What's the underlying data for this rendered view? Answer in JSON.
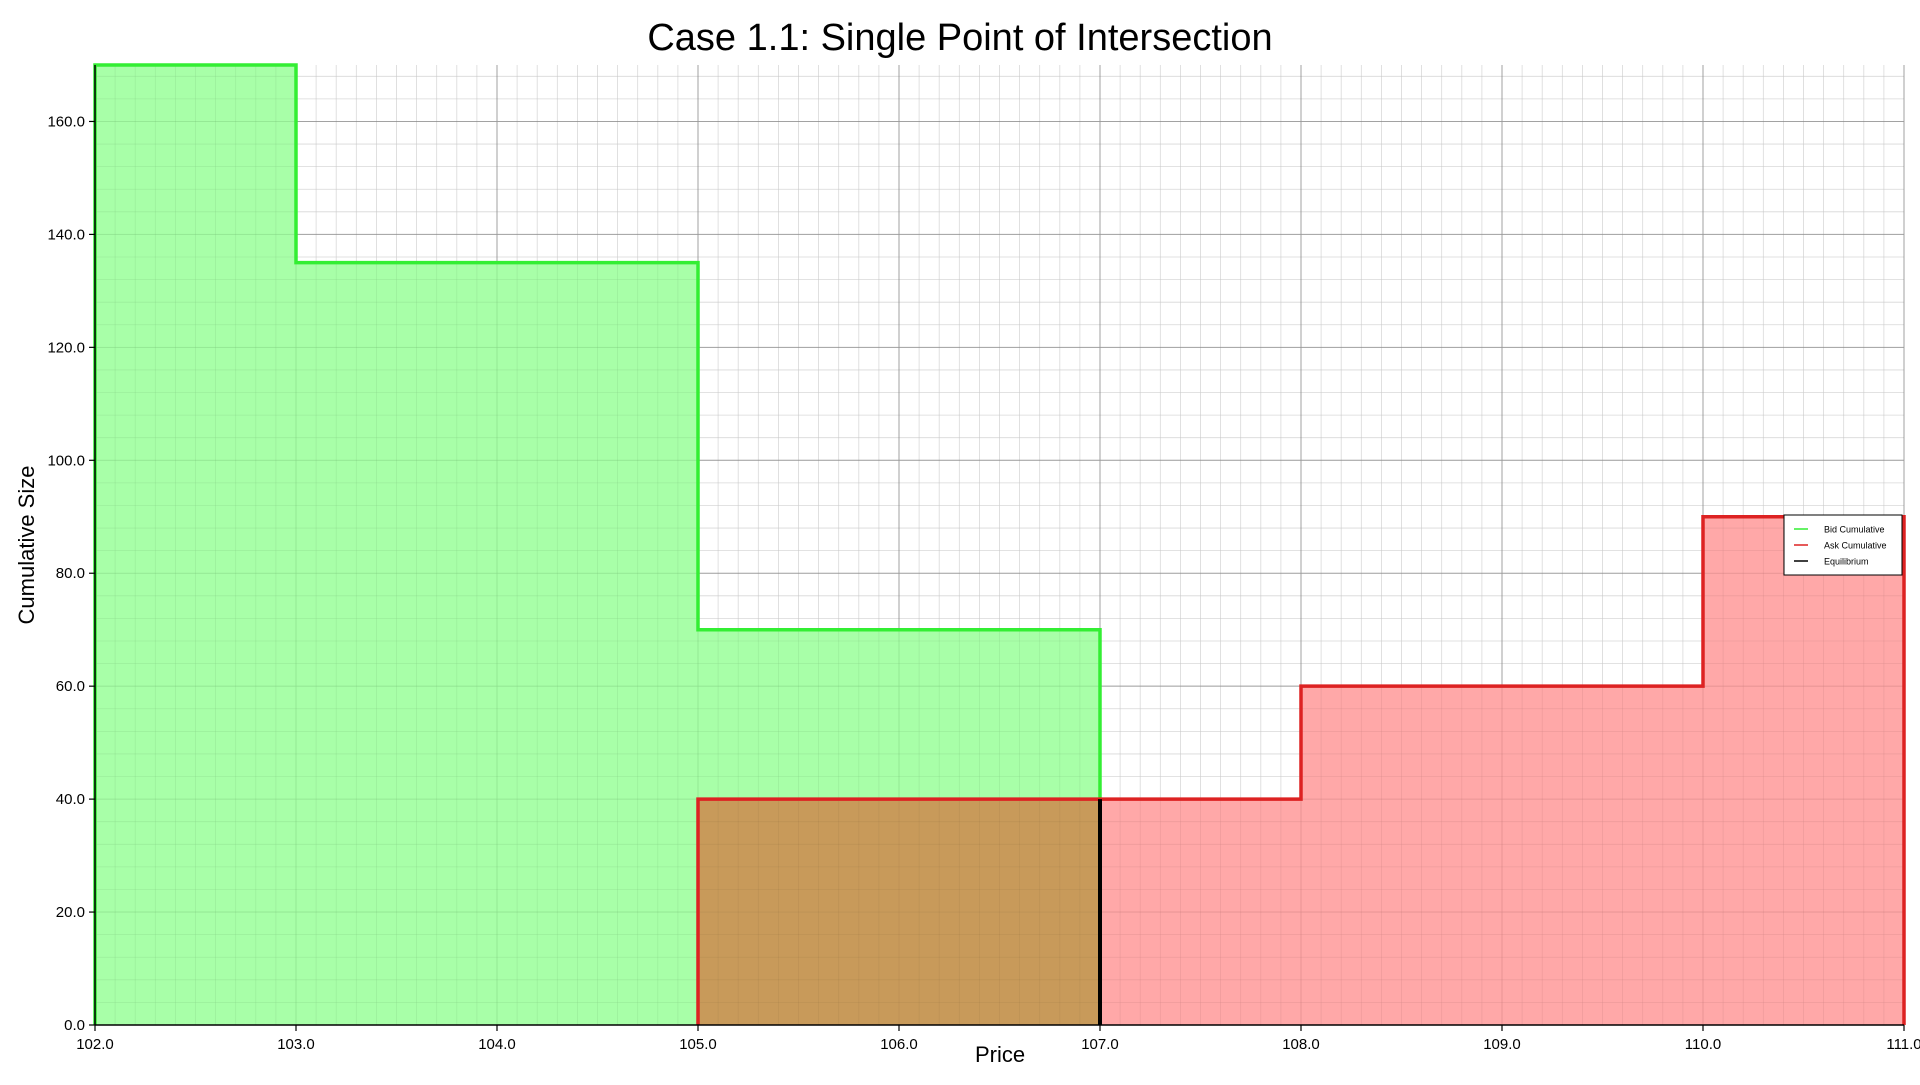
{
  "chart_data": {
    "type": "area",
    "title": "Case 1.1: Single Point of Intersection",
    "xlabel": "Price",
    "ylabel": "Cumulative Size",
    "xlim": [
      102,
      111
    ],
    "ylim": [
      0,
      170
    ],
    "x_ticks": [
      102,
      103,
      104,
      105,
      106,
      107,
      108,
      109,
      110,
      111
    ],
    "x_tick_labels": [
      "102.0",
      "103.0",
      "104.0",
      "105.0",
      "106.0",
      "107.0",
      "108.0",
      "109.0",
      "110.0",
      "111.0"
    ],
    "y_ticks": [
      0,
      20,
      40,
      60,
      80,
      100,
      120,
      140,
      160
    ],
    "y_tick_labels": [
      "0.0",
      "20.0",
      "40.0",
      "60.0",
      "80.0",
      "100.0",
      "120.0",
      "140.0",
      "160.0"
    ],
    "grid": true,
    "legend_position": "right",
    "series": [
      {
        "name": "Bid Cumulative",
        "color": "#33ee33",
        "fill": "#99ff99",
        "steps": [
          {
            "x_start": 102,
            "x_end": 103,
            "y": 170
          },
          {
            "x_start": 103,
            "x_end": 105,
            "y": 135
          },
          {
            "x_start": 105,
            "x_end": 107,
            "y": 70
          }
        ]
      },
      {
        "name": "Ask Cumulative",
        "color": "#dd2222",
        "fill": "#ff9999",
        "steps": [
          {
            "x_start": 105,
            "x_end": 108,
            "y": 40
          },
          {
            "x_start": 108,
            "x_end": 110,
            "y": 60
          },
          {
            "x_start": 110,
            "x_end": 111,
            "y": 90
          }
        ]
      },
      {
        "name": "Equilibrium",
        "color": "#000000",
        "x": 107,
        "y_range": [
          0,
          40
        ]
      }
    ],
    "overlap_fill": "#c89a5a"
  }
}
